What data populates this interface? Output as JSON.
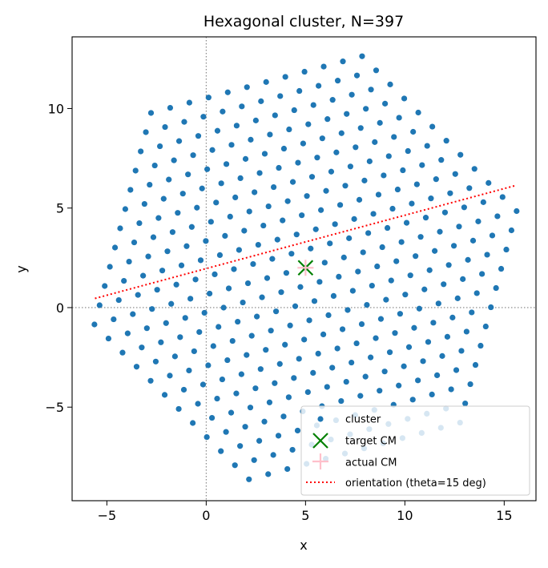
{
  "chart_data": {
    "type": "scatter",
    "title": "Hexagonal cluster, N=397",
    "xlabel": "x",
    "ylabel": "y",
    "xlim": [
      -6.75,
      16.6
    ],
    "ylim": [
      -9.7,
      13.6
    ],
    "xticks": [
      -5,
      0,
      5,
      10,
      15
    ],
    "yticks": [
      -5,
      0,
      5,
      10
    ],
    "xtick_labels": [
      "−5",
      "0",
      "5",
      "10",
      "15"
    ],
    "ytick_labels": [
      "−5",
      "0",
      "5",
      "10"
    ],
    "grid": false,
    "reference_lines": {
      "x": 0,
      "y": 0,
      "style": "dotted",
      "color": "#808080"
    },
    "lattice": {
      "description_note": "hexagonal lattice points inside a regular hexagon",
      "center": [
        5.0,
        2.0
      ],
      "spacing": 1.0,
      "rotation_deg": 15,
      "rings": 11,
      "count": 397
    },
    "series": [
      {
        "name": "cluster",
        "kind": "points",
        "color": "#1f77b4"
      },
      {
        "name": "target CM",
        "kind": "marker",
        "marker": "x",
        "color": "#008000",
        "x": 5.0,
        "y": 2.0
      },
      {
        "name": "actual CM",
        "kind": "marker",
        "marker": "+",
        "color": "#ffc0cb",
        "x": 5.0,
        "y": 2.0
      },
      {
        "name": "orientation (theta=15 deg)",
        "kind": "line",
        "style": "dotted",
        "color": "#ff0000",
        "x": [
          -5.6,
          15.6
        ],
        "y": [
          0.46,
          6.14
        ]
      }
    ],
    "legend": {
      "placement": "lower-right",
      "entries": [
        "cluster",
        "target CM",
        "actual CM",
        "orientation (theta=15 deg)"
      ]
    }
  }
}
